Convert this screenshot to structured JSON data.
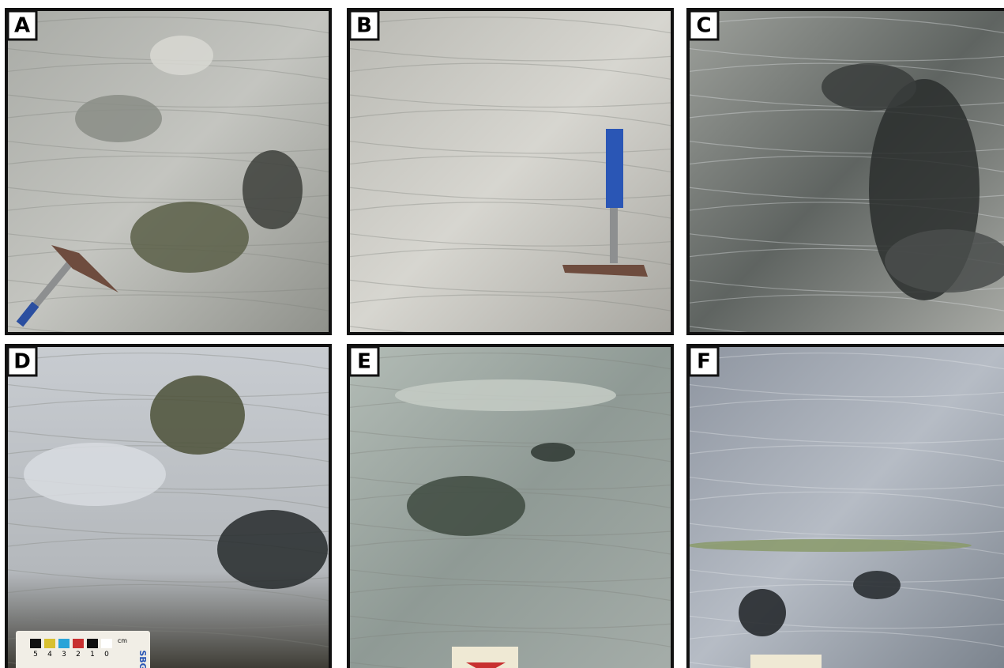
{
  "panels": [
    {
      "label": "A"
    },
    {
      "label": "B"
    },
    {
      "label": "C"
    },
    {
      "label": "D",
      "scale_card": [
        "5",
        "4",
        "3",
        "2",
        "1",
        "0",
        "cm",
        "SBG"
      ]
    },
    {
      "label": "E"
    },
    {
      "label": "F"
    }
  ]
}
